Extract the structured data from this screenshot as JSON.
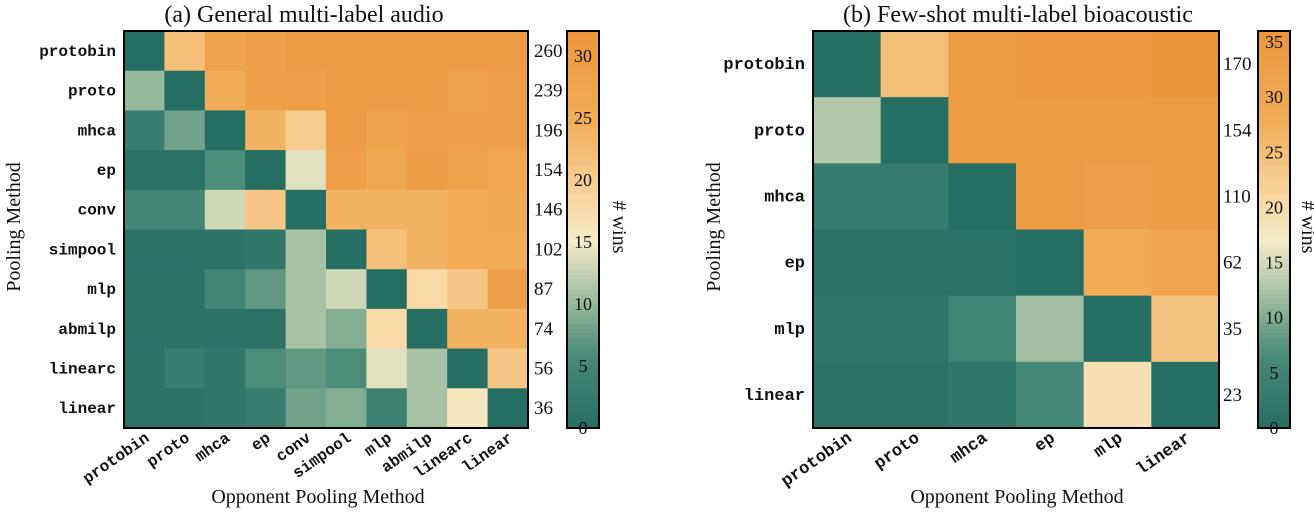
{
  "chart_data": [
    {
      "type": "heatmap",
      "title": "(a) General multi-label audio",
      "xlabel": "Opponent Pooling Method",
      "ylabel": "Pooling Method",
      "rows": [
        "protobin",
        "proto",
        "mhca",
        "ep",
        "conv",
        "simpool",
        "mlp",
        "abmilp",
        "linearc",
        "linear"
      ],
      "cols": [
        "protobin",
        "proto",
        "mhca",
        "ep",
        "conv",
        "simpool",
        "mlp",
        "abmilp",
        "linearc",
        "linear"
      ],
      "values": [
        [
          0,
          22,
          28,
          29,
          30,
          30,
          30,
          30,
          30,
          30
        ],
        [
          10,
          0,
          25,
          29,
          29,
          30,
          30,
          30,
          28,
          29
        ],
        [
          3,
          8,
          0,
          24,
          20,
          30,
          28,
          29,
          29,
          29
        ],
        [
          1,
          1,
          6,
          0,
          14,
          29,
          26,
          30,
          28,
          27
        ],
        [
          5,
          5,
          13,
          21,
          0,
          24,
          24,
          24,
          25,
          26
        ],
        [
          1,
          1,
          1,
          2,
          11,
          0,
          22,
          24,
          25,
          25
        ],
        [
          1,
          1,
          5,
          7,
          11,
          13,
          0,
          18,
          21,
          29
        ],
        [
          1,
          1,
          1,
          1,
          11,
          9,
          18,
          0,
          24,
          24
        ],
        [
          1,
          3,
          2,
          6,
          7,
          6,
          14,
          11,
          0,
          21
        ],
        [
          1,
          1,
          2,
          3,
          8,
          9,
          4,
          11,
          16,
          0
        ]
      ],
      "totals": [
        "260",
        "239",
        "196",
        "154",
        "146",
        "102",
        "87",
        "74",
        "56",
        "36"
      ],
      "colorbar": {
        "label": "# wins",
        "min": 0,
        "max": 32,
        "ticks": [
          "0",
          "5",
          "10",
          "15",
          "20",
          "25",
          "30"
        ]
      }
    },
    {
      "type": "heatmap",
      "title": "(b) Few-shot multi-label bioacoustic",
      "xlabel": "Opponent Pooling Method",
      "ylabel": "Pooling Method",
      "rows": [
        "protobin",
        "proto",
        "mhca",
        "ep",
        "mlp",
        "linear"
      ],
      "cols": [
        "protobin",
        "proto",
        "mhca",
        "ep",
        "mlp",
        "linear"
      ],
      "values": [
        [
          0,
          25,
          34,
          35,
          35,
          36
        ],
        [
          13,
          0,
          34,
          34,
          34,
          34
        ],
        [
          3,
          3,
          0,
          34,
          33,
          34
        ],
        [
          1,
          1,
          1,
          0,
          28,
          31
        ],
        [
          2,
          2,
          5,
          12,
          0,
          24
        ],
        [
          1,
          1,
          2,
          6,
          19,
          0
        ]
      ],
      "totals": [
        "170",
        "154",
        "110",
        "62",
        "35",
        "23"
      ],
      "colorbar": {
        "label": "# wins",
        "min": 0,
        "max": 36,
        "ticks": [
          "0",
          "5",
          "10",
          "15",
          "20",
          "25",
          "30",
          "35"
        ]
      }
    }
  ]
}
